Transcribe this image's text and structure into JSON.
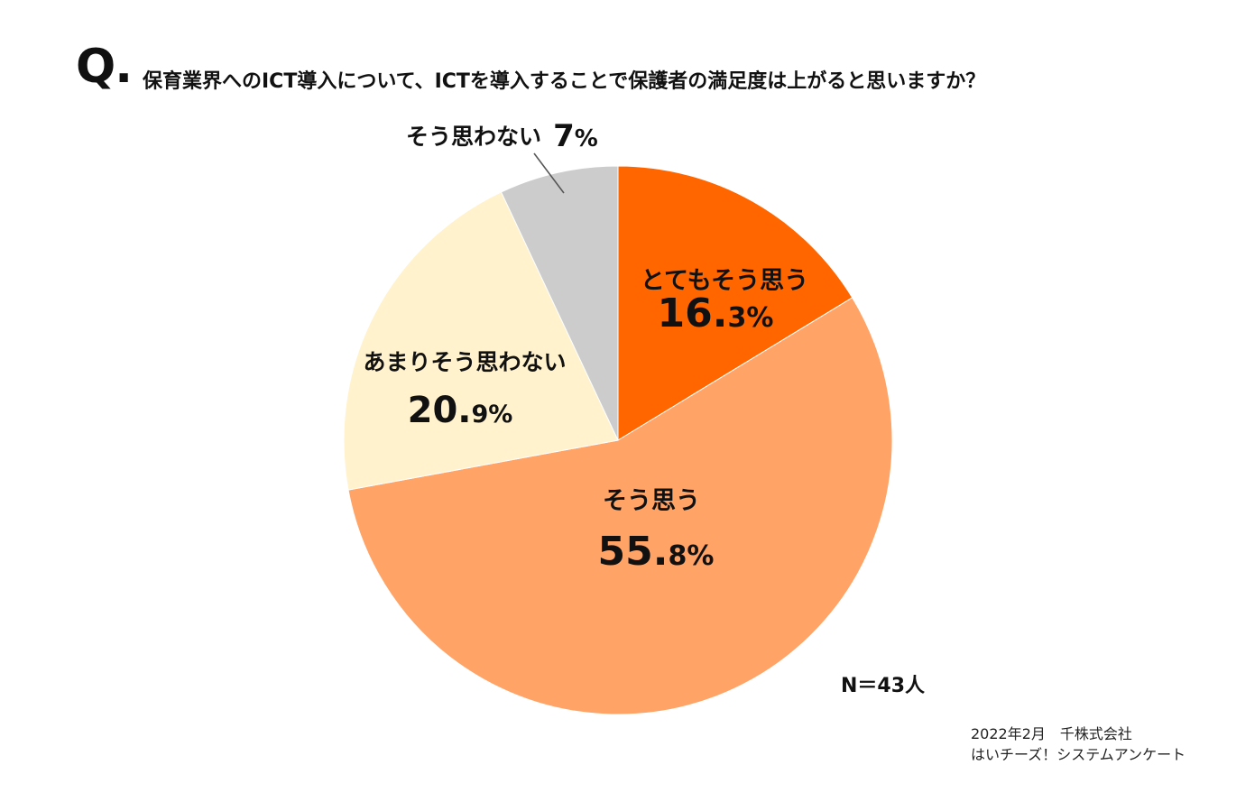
{
  "question": {
    "mark": "Q.",
    "text": "保育業界へのICT導入について、ICTを導入することで保護者の満足度は上がると思いますか？"
  },
  "chart_data": {
    "type": "pie",
    "title": "保育業界へのICT導入について、ICTを導入することで保護者の満足度は上がると思いますか？",
    "slices": [
      {
        "label": "とてもそう思う",
        "value": 16.3,
        "value_int": "16.",
        "value_dec": "3%",
        "color": "#ff6600"
      },
      {
        "label": "そう思う",
        "value": 55.8,
        "value_int": "55.",
        "value_dec": "8%",
        "color": "#ffa366"
      },
      {
        "label": "あまりそう思わない",
        "value": 20.9,
        "value_int": "20.",
        "value_dec": "9%",
        "color": "#fff2cc"
      },
      {
        "label": "そう思わない",
        "value": 7,
        "value_int": "7",
        "value_dec": "%",
        "color": "#cccccc"
      }
    ],
    "start": "12 o'clock",
    "direction": "clockwise"
  },
  "n_label": "N＝43人",
  "source": {
    "line1": "2022年2月　千株式会社",
    "line2": "はいチーズ！システムアンケート"
  }
}
